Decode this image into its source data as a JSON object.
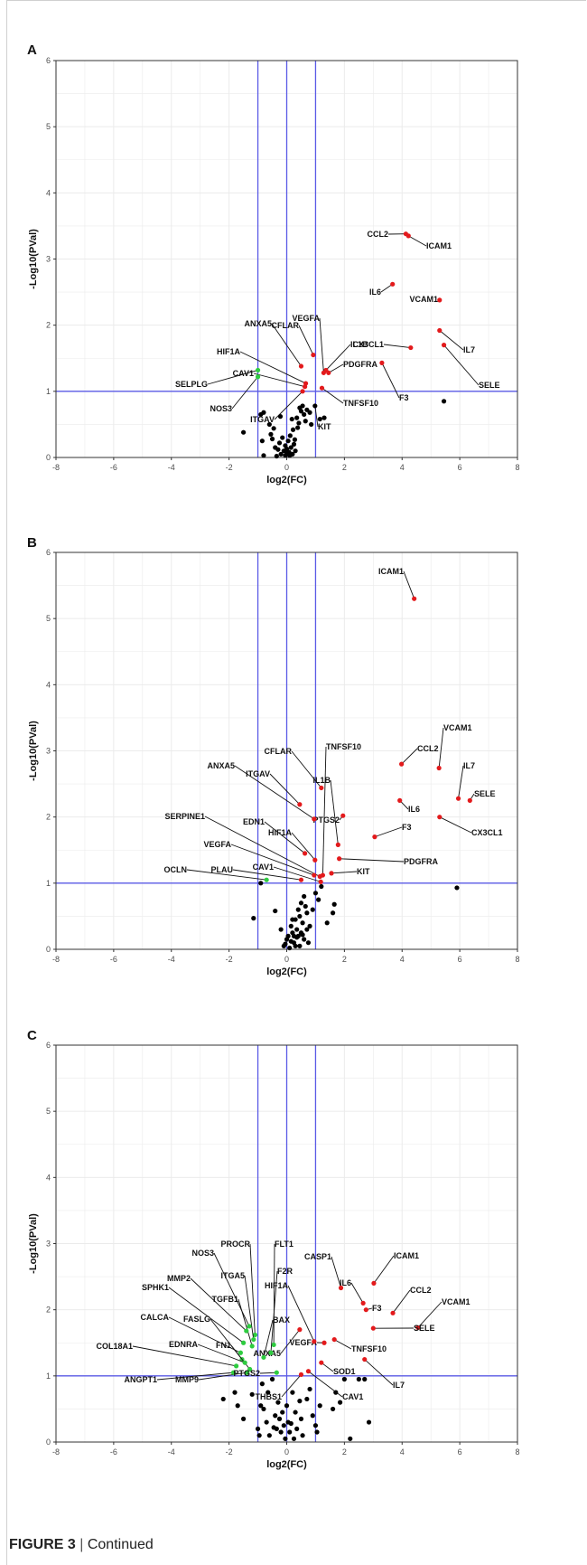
{
  "caption": {
    "figure": "FIGURE 3",
    "separator": " | ",
    "text": "Continued"
  },
  "colors": {
    "up": "#e31a1c",
    "down": "#2ecc40",
    "ns": "#000000",
    "threshold": "#5a5ae6",
    "grid": "#ebebeb"
  },
  "chart_data": [
    {
      "panel": "A",
      "type": "scatter",
      "xlabel": "log2(FC)",
      "ylabel": "-Log10(PVal)",
      "xlim": [
        -8,
        8
      ],
      "ylim": [
        0,
        6
      ],
      "xticks": [
        -8,
        -6,
        -4,
        -2,
        0,
        2,
        4,
        6,
        8
      ],
      "yticks": [
        0,
        1,
        2,
        3,
        4,
        5,
        6
      ],
      "vlines": [
        -1,
        0,
        1
      ],
      "hlines": [
        1
      ],
      "grid": true,
      "labeled": [
        {
          "label": "CCL2",
          "x": 4.13,
          "y": 3.38,
          "color": "up"
        },
        {
          "label": "ICAM1",
          "x": 4.22,
          "y": 3.35,
          "color": "up"
        },
        {
          "label": "IL6",
          "x": 3.67,
          "y": 2.62,
          "color": "up"
        },
        {
          "label": "VCAM1",
          "x": 5.3,
          "y": 2.38,
          "color": "up"
        },
        {
          "label": "IL7",
          "x": 5.3,
          "y": 1.92,
          "color": "up"
        },
        {
          "label": "CX3CL1",
          "x": 4.3,
          "y": 1.66,
          "color": "up"
        },
        {
          "label": "SELE",
          "x": 5.45,
          "y": 1.7,
          "color": "up"
        },
        {
          "label": "F3",
          "x": 3.3,
          "y": 1.43,
          "color": "up"
        },
        {
          "label": "PDGFRA",
          "x": 1.45,
          "y": 1.28,
          "color": "up"
        },
        {
          "label": "TNFSF10",
          "x": 1.22,
          "y": 1.05,
          "color": "up"
        },
        {
          "label": "IL1B",
          "x": 1.36,
          "y": 1.32,
          "color": "up"
        },
        {
          "label": "VEGFA",
          "x": 1.28,
          "y": 1.28,
          "color": "up"
        },
        {
          "label": "CFLAR",
          "x": 0.92,
          "y": 1.55,
          "color": "up"
        },
        {
          "label": "ANXA5",
          "x": 0.5,
          "y": 1.38,
          "color": "up"
        },
        {
          "label": "HIF1A",
          "x": 0.66,
          "y": 1.12,
          "color": "up"
        },
        {
          "label": "CAV1",
          "x": 0.63,
          "y": 1.07,
          "color": "up"
        },
        {
          "label": "ITGAV",
          "x": 0.55,
          "y": 1.0,
          "color": "up"
        },
        {
          "label": "SELPLG",
          "x": -1.0,
          "y": 1.32,
          "color": "down"
        },
        {
          "label": "NOS3",
          "x": -1.0,
          "y": 1.22,
          "color": "down"
        },
        {
          "label": "KIT",
          "x": 0.98,
          "y": 0.78,
          "color": "ns"
        }
      ],
      "other_points": [
        [
          5.45,
          0.85
        ],
        [
          -1.5,
          0.38
        ],
        [
          -0.9,
          0.65
        ],
        [
          -0.8,
          0.68
        ],
        [
          -0.6,
          0.5
        ],
        [
          -0.55,
          0.35
        ],
        [
          -0.5,
          0.28
        ],
        [
          -0.85,
          0.25
        ],
        [
          -0.8,
          0.03
        ],
        [
          -0.3,
          0.12
        ],
        [
          -0.25,
          0.22
        ],
        [
          -0.2,
          0.05
        ],
        [
          -0.15,
          0.3
        ],
        [
          -0.1,
          0.1
        ],
        [
          -0.05,
          0.18
        ],
        [
          0.0,
          0.07
        ],
        [
          0.05,
          0.25
        ],
        [
          0.1,
          0.03
        ],
        [
          0.12,
          0.33
        ],
        [
          0.15,
          0.15
        ],
        [
          0.2,
          0.05
        ],
        [
          0.22,
          0.42
        ],
        [
          0.25,
          0.2
        ],
        [
          0.3,
          0.1
        ],
        [
          0.35,
          0.6
        ],
        [
          0.38,
          0.45
        ],
        [
          0.42,
          0.52
        ],
        [
          0.45,
          0.75
        ],
        [
          0.5,
          0.7
        ],
        [
          0.55,
          0.78
        ],
        [
          0.6,
          0.65
        ],
        [
          0.65,
          0.55
        ],
        [
          0.7,
          0.72
        ],
        [
          0.8,
          0.68
        ],
        [
          0.85,
          0.5
        ],
        [
          1.15,
          0.58
        ],
        [
          1.3,
          0.6
        ],
        [
          -0.4,
          0.15
        ],
        [
          -0.35,
          0.02
        ],
        [
          0.0,
          0.13
        ],
        [
          0.08,
          0.08
        ],
        [
          -0.05,
          0.03
        ],
        [
          0.28,
          0.27
        ],
        [
          0.18,
          0.58
        ],
        [
          -0.22,
          0.62
        ],
        [
          -0.45,
          0.44
        ]
      ]
    },
    {
      "panel": "B",
      "type": "scatter",
      "xlabel": "log2(FC)",
      "ylabel": "-Log10(PVal)",
      "xlim": [
        -8,
        8
      ],
      "ylim": [
        0,
        6
      ],
      "xticks": [
        -8,
        -6,
        -4,
        -2,
        0,
        2,
        4,
        6,
        8
      ],
      "yticks": [
        0,
        1,
        2,
        3,
        4,
        5,
        6
      ],
      "vlines": [
        -1,
        0,
        1
      ],
      "hlines": [
        1
      ],
      "grid": true,
      "labeled": [
        {
          "label": "ICAM1",
          "x": 4.42,
          "y": 5.3,
          "color": "up"
        },
        {
          "label": "VCAM1",
          "x": 5.28,
          "y": 2.74,
          "color": "up"
        },
        {
          "label": "CCL2",
          "x": 3.98,
          "y": 2.8,
          "color": "up"
        },
        {
          "label": "IL7",
          "x": 5.95,
          "y": 2.28,
          "color": "up"
        },
        {
          "label": "SELE",
          "x": 6.35,
          "y": 2.25,
          "color": "up"
        },
        {
          "label": "IL6",
          "x": 3.92,
          "y": 2.25,
          "color": "up"
        },
        {
          "label": "CX3CL1",
          "x": 5.3,
          "y": 2.0,
          "color": "up"
        },
        {
          "label": "F3",
          "x": 3.05,
          "y": 1.7,
          "color": "up"
        },
        {
          "label": "PDGFRA",
          "x": 1.82,
          "y": 1.37,
          "color": "up"
        },
        {
          "label": "KIT",
          "x": 1.55,
          "y": 1.15,
          "color": "up"
        },
        {
          "label": "PTGS2",
          "x": 1.95,
          "y": 2.02,
          "color": "up"
        },
        {
          "label": "IL1B",
          "x": 1.78,
          "y": 1.58,
          "color": "up"
        },
        {
          "label": "TNFSF10",
          "x": 1.25,
          "y": 1.12,
          "color": "up"
        },
        {
          "label": "CFLAR",
          "x": 1.2,
          "y": 2.44,
          "color": "up"
        },
        {
          "label": "ITGAV",
          "x": 0.45,
          "y": 2.19,
          "color": "up"
        },
        {
          "label": "ANXA5",
          "x": 0.95,
          "y": 1.97,
          "color": "up"
        },
        {
          "label": "HIF1A",
          "x": 0.98,
          "y": 1.35,
          "color": "up"
        },
        {
          "label": "EDN1",
          "x": 0.63,
          "y": 1.45,
          "color": "up"
        },
        {
          "label": "SERPINE1",
          "x": 1.15,
          "y": 1.1,
          "color": "up"
        },
        {
          "label": "VEGFA",
          "x": 0.95,
          "y": 1.12,
          "color": "up"
        },
        {
          "label": "CAV1",
          "x": 1.18,
          "y": 1.02,
          "color": "up"
        },
        {
          "label": "PLAU",
          "x": 0.5,
          "y": 1.05,
          "color": "up"
        },
        {
          "label": "OCLN",
          "x": -0.7,
          "y": 1.05,
          "color": "down"
        }
      ],
      "other_points": [
        [
          5.9,
          0.93
        ],
        [
          -1.15,
          0.47
        ],
        [
          -0.9,
          1.0
        ],
        [
          -0.4,
          0.58
        ],
        [
          -0.2,
          0.3
        ],
        [
          -0.1,
          0.05
        ],
        [
          0.0,
          0.15
        ],
        [
          0.05,
          0.2
        ],
        [
          0.1,
          0.02
        ],
        [
          0.15,
          0.35
        ],
        [
          0.2,
          0.25
        ],
        [
          0.25,
          0.1
        ],
        [
          0.3,
          0.45
        ],
        [
          0.35,
          0.3
        ],
        [
          0.4,
          0.6
        ],
        [
          0.45,
          0.5
        ],
        [
          0.5,
          0.7
        ],
        [
          0.55,
          0.4
        ],
        [
          0.6,
          0.8
        ],
        [
          0.65,
          0.65
        ],
        [
          0.7,
          0.55
        ],
        [
          0.8,
          0.35
        ],
        [
          0.9,
          0.6
        ],
        [
          1.0,
          0.85
        ],
        [
          1.1,
          0.75
        ],
        [
          1.2,
          0.95
        ],
        [
          1.4,
          0.4
        ],
        [
          1.6,
          0.55
        ],
        [
          1.65,
          0.68
        ],
        [
          0.25,
          0.2
        ],
        [
          0.3,
          0.05
        ],
        [
          0.15,
          0.12
        ],
        [
          0.4,
          0.2
        ],
        [
          0.5,
          0.25
        ],
        [
          0.35,
          0.18
        ],
        [
          -0.05,
          0.08
        ],
        [
          0.45,
          0.05
        ],
        [
          0.2,
          0.45
        ],
        [
          0.55,
          0.22
        ],
        [
          0.6,
          0.15
        ],
        [
          0.7,
          0.3
        ],
        [
          0.75,
          0.1
        ]
      ]
    },
    {
      "panel": "C",
      "type": "scatter",
      "xlabel": "log2(FC)",
      "ylabel": "-Log10(PVal)",
      "xlim": [
        -8,
        8
      ],
      "ylim": [
        0,
        6
      ],
      "xticks": [
        -8,
        -6,
        -4,
        -2,
        0,
        2,
        4,
        6,
        8
      ],
      "yticks": [
        0,
        1,
        2,
        3,
        4,
        5,
        6
      ],
      "vlines": [
        -1,
        0,
        1
      ],
      "hlines": [
        1
      ],
      "grid": true,
      "labeled": [
        {
          "label": "ICAM1",
          "x": 3.02,
          "y": 2.4,
          "color": "up"
        },
        {
          "label": "CASP1",
          "x": 1.88,
          "y": 2.33,
          "color": "up"
        },
        {
          "label": "IL6",
          "x": 2.65,
          "y": 2.1,
          "color": "up"
        },
        {
          "label": "CCL2",
          "x": 3.68,
          "y": 1.95,
          "color": "up"
        },
        {
          "label": "F3",
          "x": 2.75,
          "y": 2.0,
          "color": "up"
        },
        {
          "label": "VCAM1",
          "x": 4.55,
          "y": 1.73,
          "color": "up"
        },
        {
          "label": "SELE",
          "x": 3.0,
          "y": 1.72,
          "color": "up"
        },
        {
          "label": "VEGFA",
          "x": 1.3,
          "y": 1.5,
          "color": "up"
        },
        {
          "label": "TNFSF10",
          "x": 1.65,
          "y": 1.55,
          "color": "up"
        },
        {
          "label": "HIF1A",
          "x": 0.95,
          "y": 1.52,
          "color": "up"
        },
        {
          "label": "ANXA5",
          "x": 0.45,
          "y": 1.7,
          "color": "up"
        },
        {
          "label": "SOD1",
          "x": 1.2,
          "y": 1.2,
          "color": "up"
        },
        {
          "label": "IL7",
          "x": 2.7,
          "y": 1.25,
          "color": "up"
        },
        {
          "label": "CAV1",
          "x": 0.75,
          "y": 1.07,
          "color": "up"
        },
        {
          "label": "THBS1",
          "x": 0.5,
          "y": 1.02,
          "color": "up"
        },
        {
          "label": "FLT1",
          "x": -0.45,
          "y": 1.47,
          "color": "down"
        },
        {
          "label": "F2R",
          "x": -0.55,
          "y": 1.35,
          "color": "down"
        },
        {
          "label": "BAX",
          "x": -0.8,
          "y": 1.28,
          "color": "down"
        },
        {
          "label": "PROCR",
          "x": -1.1,
          "y": 1.62,
          "color": "down"
        },
        {
          "label": "ITGA5",
          "x": -1.15,
          "y": 1.55,
          "color": "down"
        },
        {
          "label": "NOS3",
          "x": -1.3,
          "y": 1.75,
          "color": "down"
        },
        {
          "label": "TGFB1",
          "x": -1.2,
          "y": 1.45,
          "color": "down"
        },
        {
          "label": "MMP2",
          "x": -1.4,
          "y": 1.68,
          "color": "down"
        },
        {
          "label": "SPHK1",
          "x": -1.5,
          "y": 1.5,
          "color": "down"
        },
        {
          "label": "FASLG",
          "x": -1.55,
          "y": 1.25,
          "color": "down"
        },
        {
          "label": "FN1",
          "x": -1.28,
          "y": 1.1,
          "color": "down"
        },
        {
          "label": "CALCA",
          "x": -1.6,
          "y": 1.35,
          "color": "down"
        },
        {
          "label": "EDNRA",
          "x": -1.45,
          "y": 1.2,
          "color": "down"
        },
        {
          "label": "COL18A1",
          "x": -1.75,
          "y": 1.15,
          "color": "down"
        },
        {
          "label": "MMP9",
          "x": -1.38,
          "y": 1.05,
          "color": "down"
        },
        {
          "label": "ANGPT1",
          "x": -1.85,
          "y": 1.05,
          "color": "down"
        },
        {
          "label": "PTGS2",
          "x": -0.35,
          "y": 1.05,
          "color": "down"
        }
      ],
      "other_points": [
        [
          2.0,
          0.95
        ],
        [
          2.5,
          0.95
        ],
        [
          2.7,
          0.95
        ],
        [
          1.7,
          0.75
        ],
        [
          1.85,
          0.6
        ],
        [
          1.6,
          0.5
        ],
        [
          2.85,
          0.3
        ],
        [
          2.2,
          0.05
        ],
        [
          -2.2,
          0.65
        ],
        [
          -1.8,
          0.75
        ],
        [
          -1.7,
          0.55
        ],
        [
          -1.5,
          0.35
        ],
        [
          -1.2,
          0.72
        ],
        [
          -1.0,
          0.2
        ],
        [
          -0.95,
          0.1
        ],
        [
          -0.9,
          0.55
        ],
        [
          -0.85,
          0.88
        ],
        [
          -0.8,
          0.5
        ],
        [
          -0.7,
          0.3
        ],
        [
          -0.65,
          0.75
        ],
        [
          -0.5,
          0.95
        ],
        [
          -0.4,
          0.4
        ],
        [
          -0.35,
          0.2
        ],
        [
          -0.3,
          0.6
        ],
        [
          -0.25,
          0.35
        ],
        [
          -0.2,
          0.15
        ],
        [
          -0.15,
          0.45
        ],
        [
          -0.1,
          0.25
        ],
        [
          -0.05,
          0.05
        ],
        [
          0.0,
          0.55
        ],
        [
          0.05,
          0.3
        ],
        [
          0.1,
          0.15
        ],
        [
          0.2,
          0.75
        ],
        [
          0.3,
          0.45
        ],
        [
          0.35,
          0.2
        ],
        [
          0.45,
          0.62
        ],
        [
          0.5,
          0.35
        ],
        [
          0.55,
          0.1
        ],
        [
          0.7,
          0.65
        ],
        [
          0.8,
          0.8
        ],
        [
          0.9,
          0.4
        ],
        [
          1.0,
          0.25
        ],
        [
          1.05,
          0.15
        ],
        [
          1.15,
          0.55
        ],
        [
          -0.6,
          0.1
        ],
        [
          -0.45,
          0.22
        ],
        [
          0.25,
          0.05
        ],
        [
          0.15,
          0.28
        ]
      ]
    }
  ]
}
